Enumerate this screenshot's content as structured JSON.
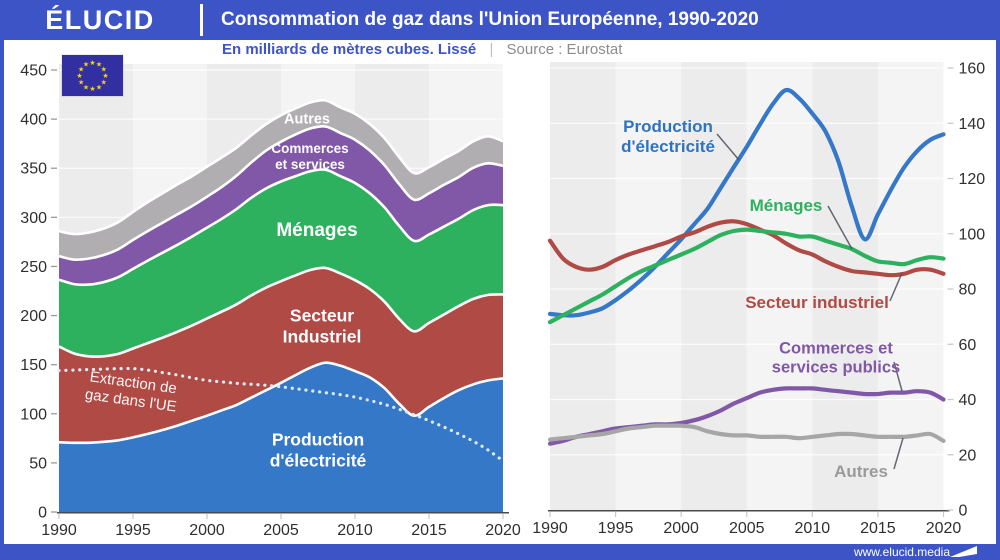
{
  "header": {
    "logo": "ÉLUCID",
    "title": "Consommation de gaz dans l'Union Européenne, 1990-2020"
  },
  "subtitle": {
    "text": "En milliards de mètres cubes. Lissé",
    "separator": "|",
    "source": "Source : Eurostat"
  },
  "footer": {
    "url": "www.elucid.media"
  },
  "colors": {
    "brand_blue": "#3C54C5",
    "electricity": "#3678C8",
    "industry": "#B04A45",
    "households": "#2DB15F",
    "services": "#8157A8",
    "others_area": "#B0AEB0",
    "others_line": "#A6A6A6",
    "extraction_dots": "#DEE9F6",
    "flag_blue": "#3230A0",
    "flag_star": "#F7D117"
  },
  "labels": {
    "left": {
      "autres": "Autres",
      "commerces_1": "Commerces",
      "commerces_2": "et services",
      "menages": "Ménages",
      "secteur_1": "Secteur",
      "secteur_2": "Industriel",
      "production_1": "Production",
      "production_2": "d'électricité",
      "extraction_1": "Extraction de",
      "extraction_2": "gaz dans l'UE"
    },
    "right": {
      "production_1": "Production",
      "production_2": "d'électricité",
      "menages": "Ménages",
      "secteur": "Secteur industriel",
      "commerces_1": "Commerces et",
      "commerces_2": "services publics",
      "autres": "Autres"
    }
  },
  "chart_data": [
    {
      "type": "area",
      "stacked": true,
      "title": "Consommation de gaz par secteur (empilé)",
      "unit": "milliards de m3",
      "yaxis_side": "left",
      "ylim": [
        0,
        450
      ],
      "yticks": [
        0,
        50,
        100,
        150,
        200,
        250,
        300,
        350,
        400,
        450
      ],
      "xticks": [
        1990,
        1995,
        2000,
        2005,
        2010,
        2015,
        2020
      ],
      "years": [
        1990,
        1991,
        1992,
        1993,
        1994,
        1995,
        1996,
        1997,
        1998,
        1999,
        2000,
        2001,
        2002,
        2003,
        2004,
        2005,
        2006,
        2007,
        2008,
        2009,
        2010,
        2011,
        2012,
        2013,
        2014,
        2015,
        2016,
        2017,
        2018,
        2019,
        2020
      ],
      "series": [
        {
          "name": "Production d'électricité",
          "color": "#3678C8",
          "values": [
            71,
            70.5,
            70.5,
            71.5,
            73,
            76,
            79.5,
            83.5,
            88,
            93,
            98,
            103.5,
            109,
            116.5,
            124,
            131.5,
            139.5,
            147,
            152,
            149,
            143.5,
            137,
            126,
            110,
            98,
            107,
            116,
            124,
            130,
            134,
            136
          ]
        },
        {
          "name": "Secteur Industriel",
          "color": "#B04A45",
          "values": [
            97.5,
            91,
            88,
            87,
            88,
            90.5,
            92.5,
            94,
            95.5,
            97,
            99,
            100.5,
            102.5,
            104,
            104.5,
            103.5,
            101.5,
            99.5,
            96.5,
            94,
            92.5,
            90,
            88,
            86.5,
            86,
            85.5,
            85,
            85.5,
            87,
            87,
            85.5
          ]
        },
        {
          "name": "Ménages",
          "color": "#2DB15F",
          "values": [
            68,
            70.5,
            73,
            75.5,
            78,
            81,
            84,
            86.5,
            88.5,
            90.5,
            92.5,
            94.5,
            97,
            99.5,
            101,
            101.5,
            101,
            100.5,
            100,
            99,
            99,
            97.5,
            96,
            94.5,
            92,
            90,
            89.5,
            89,
            90.5,
            91.5,
            91
          ]
        },
        {
          "name": "Commerces et services",
          "color": "#8157A8",
          "values": [
            24,
            25,
            26.5,
            27.5,
            28.5,
            29.5,
            30,
            30.5,
            31,
            31,
            31.5,
            32.5,
            34,
            36,
            38.5,
            40.5,
            42.5,
            43.5,
            44,
            44,
            44,
            43.5,
            43,
            42.5,
            42,
            42,
            42.5,
            42.5,
            43,
            42.5,
            40
          ]
        },
        {
          "name": "Autres",
          "color": "#B0AEB0",
          "values": [
            25.5,
            26,
            26.5,
            27,
            27.5,
            28.5,
            29.5,
            30,
            30.5,
            30.5,
            30.5,
            30,
            28.5,
            27.5,
            27,
            27,
            26.5,
            26.5,
            26.5,
            26,
            26.5,
            27,
            27.5,
            27.5,
            27,
            26.5,
            26.5,
            26.5,
            27,
            27.5,
            25
          ]
        }
      ],
      "overlay_line": {
        "name": "Extraction de gaz dans l'UE",
        "style": "dotted",
        "color": "#DEE9F6",
        "values": [
          144,
          144.5,
          145,
          145.5,
          146,
          146,
          144.5,
          142,
          139.5,
          136.5,
          134,
          132.5,
          131,
          130,
          129,
          127.5,
          125.5,
          123.5,
          121.5,
          119.5,
          117,
          113.5,
          109.5,
          104.5,
          99,
          93,
          86.5,
          79.5,
          72,
          63,
          52
        ]
      }
    },
    {
      "type": "line",
      "stacked": false,
      "title": "Consommation de gaz par secteur (courbes)",
      "unit": "milliards de m3",
      "yaxis_side": "right",
      "ylim": [
        0,
        160
      ],
      "yticks": [
        0,
        20,
        40,
        60,
        80,
        100,
        120,
        140,
        160
      ],
      "xticks": [
        1990,
        1995,
        2000,
        2005,
        2010,
        2015,
        2020
      ],
      "years": [
        1990,
        1991,
        1992,
        1993,
        1994,
        1995,
        1996,
        1997,
        1998,
        1999,
        2000,
        2001,
        2002,
        2003,
        2004,
        2005,
        2006,
        2007,
        2008,
        2009,
        2010,
        2011,
        2012,
        2013,
        2014,
        2015,
        2016,
        2017,
        2018,
        2019,
        2020
      ],
      "series": [
        {
          "name": "Production d'électricité",
          "color": "#3678C8",
          "values": [
            71,
            70.5,
            70.5,
            71.5,
            73,
            76,
            79.5,
            83.5,
            88,
            93,
            98,
            103.5,
            109,
            116.5,
            124,
            131.5,
            139.5,
            147,
            152,
            149,
            143.5,
            137,
            126,
            110,
            98,
            107,
            116,
            124,
            130,
            134,
            136
          ]
        },
        {
          "name": "Secteur industriel",
          "color": "#B04A45",
          "values": [
            97.5,
            91,
            88,
            87,
            88,
            90.5,
            92.5,
            94,
            95.5,
            97,
            99,
            100.5,
            102.5,
            104,
            104.5,
            103.5,
            101.5,
            99.5,
            96.5,
            94,
            92.5,
            90,
            88,
            86.5,
            86,
            85.5,
            85,
            85.5,
            87,
            87,
            85.5
          ]
        },
        {
          "name": "Ménages",
          "color": "#2DB15F",
          "values": [
            68,
            70.5,
            73,
            75.5,
            78,
            81,
            84,
            86.5,
            88.5,
            90.5,
            92.5,
            94.5,
            97,
            99.5,
            101,
            101.5,
            101,
            100.5,
            100,
            99,
            99,
            97.5,
            96,
            94.5,
            92,
            90,
            89.5,
            89,
            90.5,
            91.5,
            91
          ]
        },
        {
          "name": "Commerces et services publics",
          "color": "#8157A8",
          "values": [
            24,
            25,
            26.5,
            27.5,
            28.5,
            29.5,
            30,
            30.5,
            31,
            31,
            31.5,
            32.5,
            34,
            36,
            38.5,
            40.5,
            42.5,
            43.5,
            44,
            44,
            44,
            43.5,
            43,
            42.5,
            42,
            42,
            42.5,
            42.5,
            43,
            42.5,
            40
          ]
        },
        {
          "name": "Autres",
          "color": "#A6A6A6",
          "values": [
            25.5,
            26,
            26.5,
            27,
            27.5,
            28.5,
            29.5,
            30,
            30.5,
            30.5,
            30.5,
            30,
            28.5,
            27.5,
            27,
            27,
            26.5,
            26.5,
            26.5,
            26,
            26.5,
            27,
            27.5,
            27.5,
            27,
            26.5,
            26.5,
            26.5,
            27,
            27.5,
            25
          ]
        }
      ]
    }
  ]
}
